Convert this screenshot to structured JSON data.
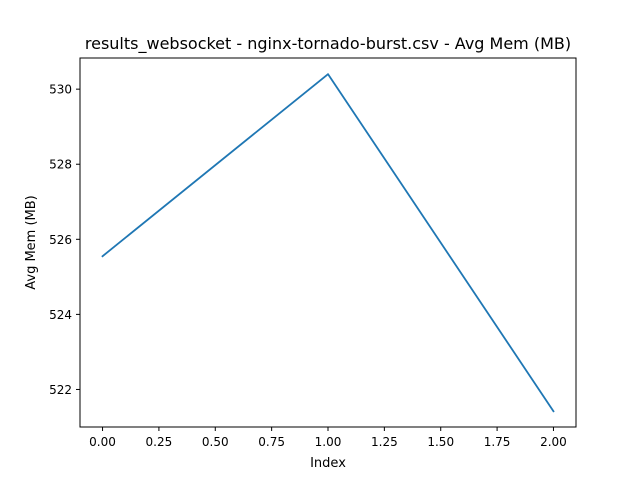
{
  "chart_data": {
    "type": "line",
    "title": "results_websocket - nginx-tornado-burst.csv - Avg Mem (MB)",
    "xlabel": "Index",
    "ylabel": "Avg Mem (MB)",
    "xlim": [
      -0.1,
      2.1
    ],
    "ylim": [
      521.0,
      530.83
    ],
    "xticks": [
      0.0,
      0.25,
      0.5,
      0.75,
      1.0,
      1.25,
      1.5,
      1.75,
      2.0
    ],
    "xtick_labels": [
      "0.00",
      "0.25",
      "0.50",
      "0.75",
      "1.00",
      "1.25",
      "1.50",
      "1.75",
      "2.00"
    ],
    "yticks": [
      522,
      524,
      526,
      528,
      530
    ],
    "ytick_labels": [
      "522",
      "524",
      "526",
      "528",
      "530"
    ],
    "grid": false,
    "series": [
      {
        "x": [
          0,
          1,
          2
        ],
        "values": [
          525.55,
          530.4,
          521.42
        ],
        "color": "#1f77b4"
      }
    ]
  }
}
